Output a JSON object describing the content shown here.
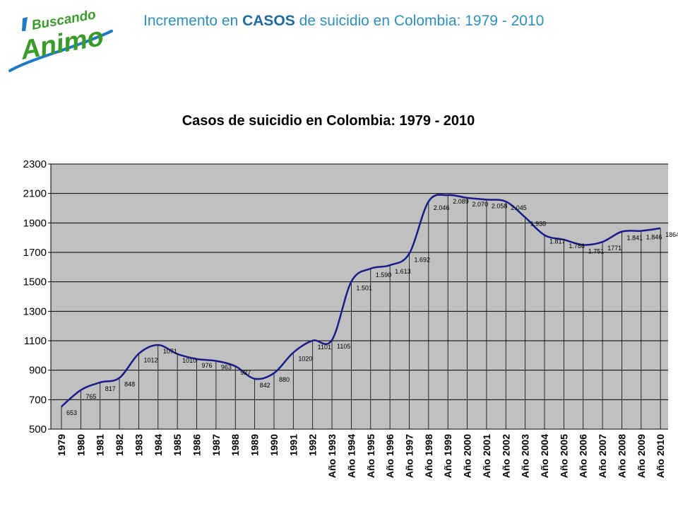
{
  "header": {
    "logo_top": "Buscando",
    "logo_bottom": "Animo",
    "title_before": "Incremento en ",
    "title_bold": "CASOS",
    "title_after": " de suicidio en Colombia: 1979 - 2010"
  },
  "colors": {
    "line": "#1a1a8c",
    "plot_bg": "#c0c0c0",
    "title_blue": "#2f8fbd",
    "logo_green": "#3a9a2a",
    "logo_blue": "#1f7ac4"
  },
  "chart_data": {
    "type": "line",
    "title": "Casos de suicidio en Colombia: 1979 - 2010",
    "xlabel": "",
    "ylabel": "",
    "ylim": [
      500,
      2300
    ],
    "yticks": [
      500,
      700,
      900,
      1100,
      1300,
      1500,
      1700,
      1900,
      2100,
      2300
    ],
    "grid": true,
    "categories": [
      "1979",
      "1980",
      "1981",
      "1982",
      "1983",
      "1984",
      "1985",
      "1986",
      "1987",
      "1988",
      "1989",
      "1990",
      "1991",
      "1992",
      "Año 1993",
      "Año 1994",
      "Año 1995",
      "Año 1996",
      "Año 1997",
      "Año 1998",
      "Año 1999",
      "Año 2000",
      "Año 2001",
      "Año 2002",
      "Año 2003",
      "Año 2004",
      "Año 2005",
      "Año 2006",
      "Año 2007",
      "Año 2008",
      "Año 2009",
      "Año 2010"
    ],
    "series": [
      {
        "values": [
          653,
          765,
          817,
          848,
          1012,
          1071,
          1010,
          976,
          963,
          927,
          842,
          880,
          1020,
          1101,
          1105,
          1501,
          1590,
          1613,
          1692,
          2046,
          2089,
          2070,
          2058,
          2045,
          1938,
          1817,
          1786,
          1751,
          1771,
          1841,
          1846,
          1864
        ],
        "labels": [
          "653",
          "765",
          "817",
          "848",
          "1012",
          "1071",
          "1010",
          "976",
          "963",
          "927",
          "842",
          "880",
          "1020",
          "1101",
          "1105",
          "1.501",
          "1.590",
          "1.613",
          "1.692",
          "2.046",
          "2.089",
          "2.070",
          "2.058",
          "2.045",
          "1.938",
          "1.817",
          "1.786",
          "1.751",
          "1771",
          "1.841",
          "1.846",
          "1864"
        ]
      }
    ]
  }
}
